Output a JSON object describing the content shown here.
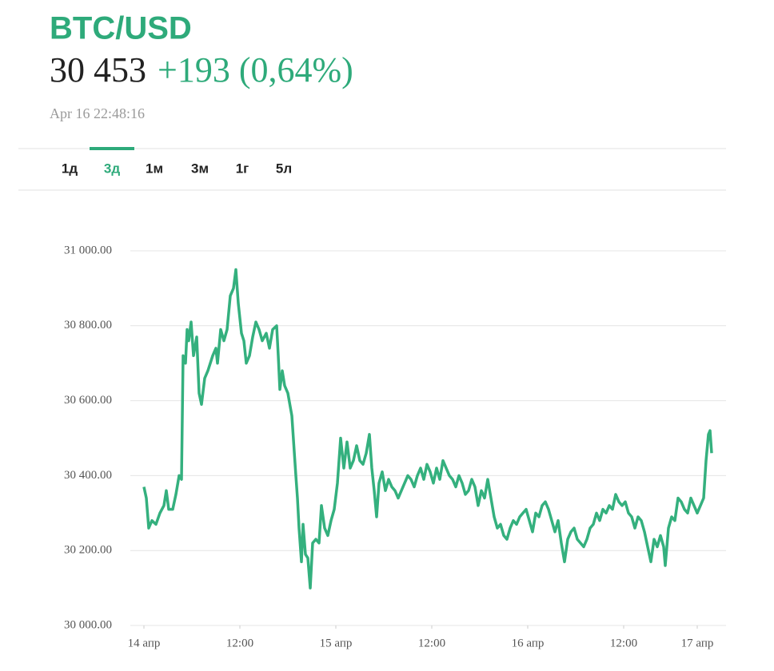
{
  "header": {
    "title": "BTC/USD",
    "price": "30 453",
    "change": "+193 (0,64%)",
    "timestamp": "Apr 16 22:48:16"
  },
  "tabs": {
    "items": [
      "1д",
      "3д",
      "1м",
      "3м",
      "1г",
      "5л"
    ],
    "active": 1
  },
  "chart_data": {
    "type": "line",
    "grid": true,
    "series": [
      {
        "color": "#34b07e",
        "x": [
          0,
          0.3,
          0.6,
          1,
          1.5,
          2,
          2.5,
          2.8,
          3.1,
          3.6,
          4,
          4.4,
          4.7,
          4.9,
          5.2,
          5.4,
          5.6,
          5.9,
          6.2,
          6.6,
          6.9,
          7.2,
          7.6,
          8,
          8.6,
          9,
          9.2,
          9.6,
          10,
          10.4,
          10.8,
          11.2,
          11.5,
          11.8,
          12.2,
          12.5,
          12.8,
          13.2,
          13.6,
          14,
          14.4,
          14.8,
          15.3,
          15.7,
          16.1,
          16.6,
          16.8,
          17,
          17.3,
          17.6,
          18,
          18.5,
          19,
          19.2,
          19.4,
          19.7,
          19.9,
          20.2,
          20.5,
          20.8,
          21.1,
          21.5,
          21.9,
          22.2,
          22.6,
          23,
          23.4,
          23.8,
          24.2,
          24.6,
          25,
          25.4,
          25.8,
          26.2,
          26.6,
          27,
          27.4,
          27.8,
          28.2,
          28.5,
          28.8,
          29.1,
          29.4,
          29.8,
          30.2,
          30.6,
          31,
          31.4,
          31.8,
          32.2,
          32.6,
          33,
          33.4,
          33.8,
          34.2,
          34.6,
          35,
          35.4,
          35.8,
          36.2,
          36.6,
          37,
          37.4,
          37.8,
          38.2,
          38.6,
          39,
          39.4,
          39.8,
          40.2,
          40.6,
          41,
          41.4,
          41.8,
          42.2,
          42.6,
          43,
          43.4,
          43.8,
          44.2,
          44.6,
          45,
          45.4,
          45.8,
          46.2,
          46.6,
          47,
          47.4,
          47.8,
          48.2,
          48.6,
          49,
          49.4,
          49.8,
          50.2,
          50.6,
          51,
          51.4,
          51.8,
          52.2,
          52.6,
          53,
          53.4,
          53.8,
          54.2,
          54.6,
          55,
          55.4,
          55.8,
          56.2,
          56.6,
          57,
          57.4,
          57.8,
          58.2,
          58.6,
          59,
          59.4,
          59.8,
          60.2,
          60.6,
          61,
          61.4,
          61.8,
          62.2,
          62.6,
          63,
          63.4,
          63.8,
          64.2,
          64.6,
          65,
          65.2,
          65.6,
          66,
          66.4,
          66.8,
          67.2,
          67.6,
          68,
          68.4,
          68.8,
          69.2,
          69.6,
          70,
          70.3,
          70.6,
          70.8,
          71
        ],
        "values": [
          30370,
          30340,
          30260,
          30280,
          30270,
          30300,
          30320,
          30360,
          30310,
          30310,
          30350,
          30400,
          30390,
          30720,
          30700,
          30790,
          30760,
          30810,
          30720,
          30770,
          30620,
          30590,
          30660,
          30680,
          30720,
          30740,
          30700,
          30790,
          30760,
          30790,
          30880,
          30900,
          30950,
          30860,
          30780,
          30760,
          30700,
          30720,
          30770,
          30810,
          30790,
          30760,
          30780,
          30740,
          30790,
          30800,
          30720,
          30630,
          30680,
          30640,
          30620,
          30560,
          30400,
          30340,
          30260,
          30170,
          30270,
          30190,
          30180,
          30100,
          30220,
          30230,
          30220,
          30320,
          30260,
          30240,
          30280,
          30310,
          30380,
          30500,
          30420,
          30490,
          30420,
          30440,
          30480,
          30440,
          30430,
          30460,
          30510,
          30420,
          30360,
          30290,
          30380,
          30410,
          30360,
          30390,
          30370,
          30360,
          30340,
          30360,
          30380,
          30400,
          30390,
          30370,
          30400,
          30420,
          30390,
          30430,
          30410,
          30380,
          30420,
          30390,
          30440,
          30420,
          30400,
          30390,
          30370,
          30400,
          30380,
          30350,
          30360,
          30390,
          30370,
          30320,
          30360,
          30340,
          30390,
          30340,
          30290,
          30260,
          30270,
          30240,
          30230,
          30260,
          30280,
          30270,
          30290,
          30300,
          30310,
          30280,
          30250,
          30300,
          30290,
          30320,
          30330,
          30310,
          30280,
          30250,
          30280,
          30220,
          30170,
          30230,
          30250,
          30260,
          30230,
          30220,
          30210,
          30230,
          30260,
          30270,
          30300,
          30280,
          30310,
          30300,
          30320,
          30310,
          30350,
          30330,
          30320,
          30330,
          30300,
          30290,
          30260,
          30290,
          30280,
          30250,
          30210,
          30170,
          30230,
          30210,
          30240,
          30210,
          30160,
          30260,
          30290,
          30280,
          30340,
          30330,
          30310,
          30300,
          30340,
          30320,
          30300,
          30320,
          30340,
          30440,
          30510,
          30520,
          30460
        ]
      }
    ],
    "xlim": [
      -1.7,
      72.8
    ],
    "xticks": [
      {
        "value": 0,
        "label": "14 апр"
      },
      {
        "value": 12,
        "label": "12:00"
      },
      {
        "value": 24,
        "label": "15 апр"
      },
      {
        "value": 36,
        "label": "12:00"
      },
      {
        "value": 48,
        "label": "16 апр"
      },
      {
        "value": 60,
        "label": "12:00"
      },
      {
        "value": 69.2,
        "label": "17 апр"
      }
    ],
    "ylim": [
      30000,
      31000
    ],
    "yticks": [
      {
        "value": 30000,
        "label": "30 000.00"
      },
      {
        "value": 30200,
        "label": "30 200.00"
      },
      {
        "value": 30400,
        "label": "30 400.00"
      },
      {
        "value": 30600,
        "label": "30 600.00"
      },
      {
        "value": 30800,
        "label": "30 800.00"
      },
      {
        "value": 31000,
        "label": "31 000.00"
      }
    ]
  }
}
